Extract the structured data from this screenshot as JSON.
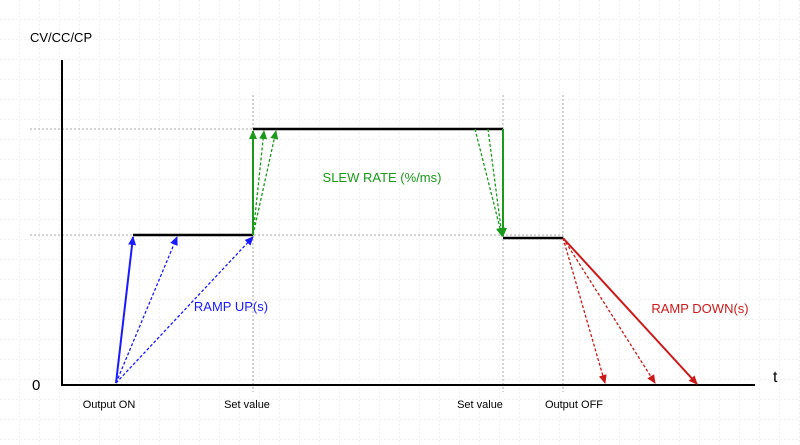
{
  "axis": {
    "y_label": "CV/CC/CP",
    "origin": "0",
    "x_label": "t"
  },
  "x_labels": [
    "Output ON",
    "Set value",
    "Set value",
    "Output OFF"
  ],
  "annotations": {
    "slew_rate": "SLEW RATE (%/ms)",
    "ramp_up": "RAMP UP(s)",
    "ramp_down": "RAMP DOWN(s)"
  }
}
